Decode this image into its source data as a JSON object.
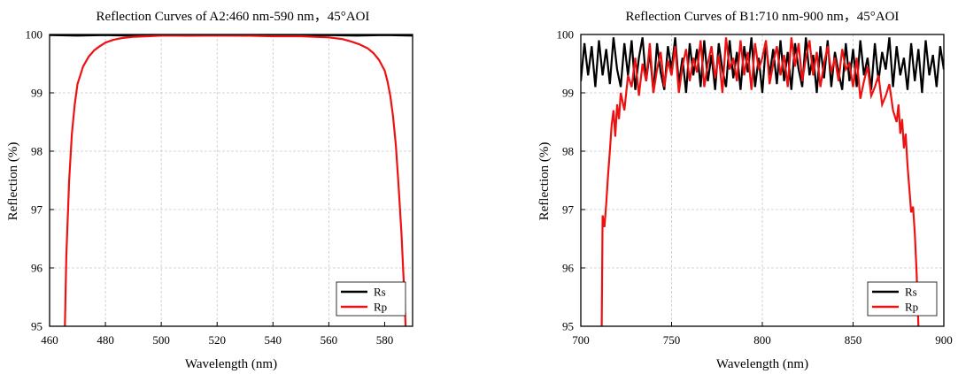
{
  "chart_data": [
    {
      "type": "line",
      "title": "Reflection Curves of A2:460 nm-590 nm，45°AOI",
      "xlabel": "Wavelength (nm)",
      "ylabel": "Reflection (%)",
      "xlim": [
        460,
        590
      ],
      "ylim": [
        95,
        100
      ],
      "xticks": [
        460,
        480,
        500,
        520,
        540,
        560,
        580
      ],
      "yticks": [
        95,
        96,
        97,
        98,
        99,
        100
      ],
      "grid": true,
      "legend_position": "bottom-right",
      "series": [
        {
          "name": "Rs",
          "color": "#000000",
          "noisy": false,
          "x": [
            460,
            470,
            480,
            490,
            500,
            510,
            520,
            530,
            540,
            550,
            560,
            570,
            580,
            590
          ],
          "y": [
            99.99,
            99.98,
            99.99,
            99.98,
            99.99,
            99.98,
            99.99,
            99.98,
            99.99,
            99.98,
            99.99,
            99.98,
            99.99,
            99.98
          ]
        },
        {
          "name": "Rp",
          "color": "#ee1111",
          "noisy": false,
          "x": [
            465.5,
            466,
            467,
            468,
            469,
            470,
            471,
            472,
            474,
            476,
            478,
            480,
            483,
            486,
            490,
            495,
            500,
            510,
            520,
            530,
            540,
            550,
            560,
            565,
            568,
            571,
            574,
            576,
            578,
            580,
            581,
            582,
            583,
            584,
            585,
            586,
            587,
            587.5
          ],
          "y": [
            95.0,
            96.2,
            97.5,
            98.3,
            98.8,
            99.15,
            99.3,
            99.45,
            99.62,
            99.73,
            99.8,
            99.86,
            99.91,
            99.94,
            99.96,
            99.97,
            99.98,
            99.98,
            99.98,
            99.98,
            99.97,
            99.97,
            99.95,
            99.92,
            99.88,
            99.83,
            99.76,
            99.68,
            99.56,
            99.38,
            99.2,
            98.95,
            98.6,
            98.1,
            97.4,
            96.6,
            95.6,
            95.0
          ]
        }
      ]
    },
    {
      "type": "line",
      "title": "Reflection Curves of B1:710 nm-900 nm，45°AOI",
      "xlabel": "Wavelength (nm)",
      "ylabel": "Reflection (%)",
      "xlim": [
        700,
        900
      ],
      "ylim": [
        95,
        100
      ],
      "xticks": [
        700,
        750,
        800,
        850,
        900
      ],
      "yticks": [
        95,
        96,
        97,
        98,
        99,
        100
      ],
      "grid": true,
      "legend_position": "bottom-right",
      "series": [
        {
          "name": "Rs",
          "color": "#000000",
          "noisy": true,
          "x": [
            700,
            702,
            704,
            706,
            708,
            710,
            712,
            714,
            716,
            718,
            720,
            722,
            724,
            726,
            728,
            730,
            732,
            734,
            736,
            738,
            740,
            742,
            744,
            746,
            748,
            750,
            752,
            754,
            756,
            758,
            760,
            762,
            764,
            766,
            768,
            770,
            772,
            774,
            776,
            778,
            780,
            782,
            784,
            786,
            788,
            790,
            792,
            794,
            796,
            798,
            800,
            802,
            804,
            806,
            808,
            810,
            812,
            814,
            816,
            818,
            820,
            822,
            824,
            826,
            828,
            830,
            832,
            834,
            836,
            838,
            840,
            842,
            844,
            846,
            848,
            850,
            852,
            854,
            856,
            858,
            860,
            862,
            864,
            866,
            868,
            870,
            872,
            874,
            876,
            878,
            880,
            882,
            884,
            886,
            888,
            890,
            892,
            894,
            896,
            898,
            900
          ],
          "y": [
            99.2,
            99.85,
            99.3,
            99.8,
            99.1,
            99.9,
            99.3,
            99.75,
            99.15,
            99.95,
            99.4,
            99.1,
            99.85,
            99.3,
            99.9,
            99.05,
            99.6,
            99.95,
            99.2,
            99.7,
            99.0,
            99.85,
            99.35,
            99.05,
            99.8,
            99.4,
            99.95,
            99.15,
            99.6,
            99.0,
            99.85,
            99.3,
            99.75,
            99.1,
            99.9,
            99.2,
            99.65,
            99.05,
            99.85,
            99.4,
            99.1,
            99.9,
            99.25,
            99.7,
            99.05,
            99.8,
            99.35,
            99.95,
            99.1,
            99.6,
            99.0,
            99.85,
            99.3,
            99.75,
            99.15,
            99.9,
            99.2,
            99.7,
            99.05,
            99.85,
            99.4,
            99.1,
            99.95,
            99.3,
            99.65,
            99.0,
            99.8,
            99.25,
            99.9,
            99.1,
            99.7,
            99.35,
            99.05,
            99.85,
            99.2,
            99.75,
            99.1,
            99.9,
            99.3,
            99.6,
            99.05,
            99.85,
            99.2,
            99.7,
            99.4,
            99.95,
            99.1,
            99.8,
            99.3,
            99.6,
            99.05,
            99.85,
            99.2,
            99.75,
            99.0,
            99.9,
            99.3,
            99.65,
            99.1,
            99.8,
            99.4
          ]
        },
        {
          "name": "Rp",
          "color": "#ee1111",
          "noisy": true,
          "x": [
            711.5,
            712,
            713,
            714,
            715,
            716,
            717,
            718,
            719,
            720,
            721,
            722,
            724,
            726,
            728,
            730,
            732,
            734,
            736,
            738,
            740,
            742,
            744,
            746,
            748,
            750,
            752,
            754,
            756,
            758,
            760,
            762,
            764,
            766,
            768,
            770,
            772,
            774,
            776,
            778,
            780,
            782,
            784,
            786,
            788,
            790,
            792,
            794,
            796,
            798,
            800,
            802,
            804,
            806,
            808,
            810,
            812,
            814,
            816,
            818,
            820,
            822,
            824,
            826,
            828,
            830,
            832,
            834,
            836,
            838,
            840,
            842,
            844,
            846,
            848,
            850,
            852,
            854,
            856,
            858,
            860,
            862,
            864,
            866,
            868,
            870,
            872,
            874,
            875,
            876,
            877,
            878,
            879,
            880,
            881,
            882,
            883,
            884,
            885,
            886
          ],
          "y": [
            95.0,
            96.9,
            96.7,
            97.1,
            97.6,
            98.0,
            98.45,
            98.7,
            98.25,
            98.8,
            98.55,
            99.0,
            98.7,
            99.3,
            99.1,
            99.6,
            98.95,
            99.5,
            99.2,
            99.85,
            99.0,
            99.4,
            99.7,
            99.1,
            99.55,
            99.3,
            99.8,
            99.0,
            99.45,
            99.75,
            99.2,
            99.6,
            99.35,
            99.9,
            99.1,
            99.5,
            99.8,
            99.25,
            99.65,
            99.0,
            99.95,
            99.4,
            99.6,
            99.2,
            99.9,
            99.3,
            99.7,
            99.05,
            99.85,
            99.4,
            99.6,
            99.9,
            99.15,
            99.5,
            99.8,
            99.3,
            99.65,
            99.1,
            99.95,
            99.45,
            99.85,
            99.2,
            99.6,
            99.9,
            99.3,
            99.7,
            99.1,
            99.5,
            99.8,
            99.35,
            99.6,
            99.2,
            99.75,
            99.4,
            99.5,
            99.1,
            99.6,
            98.9,
            99.2,
            99.45,
            98.95,
            99.1,
            99.3,
            98.8,
            98.95,
            99.15,
            98.7,
            98.5,
            98.8,
            98.3,
            98.55,
            98.05,
            98.3,
            97.75,
            97.35,
            96.95,
            97.05,
            96.6,
            95.9,
            95.0
          ]
        }
      ]
    }
  ]
}
